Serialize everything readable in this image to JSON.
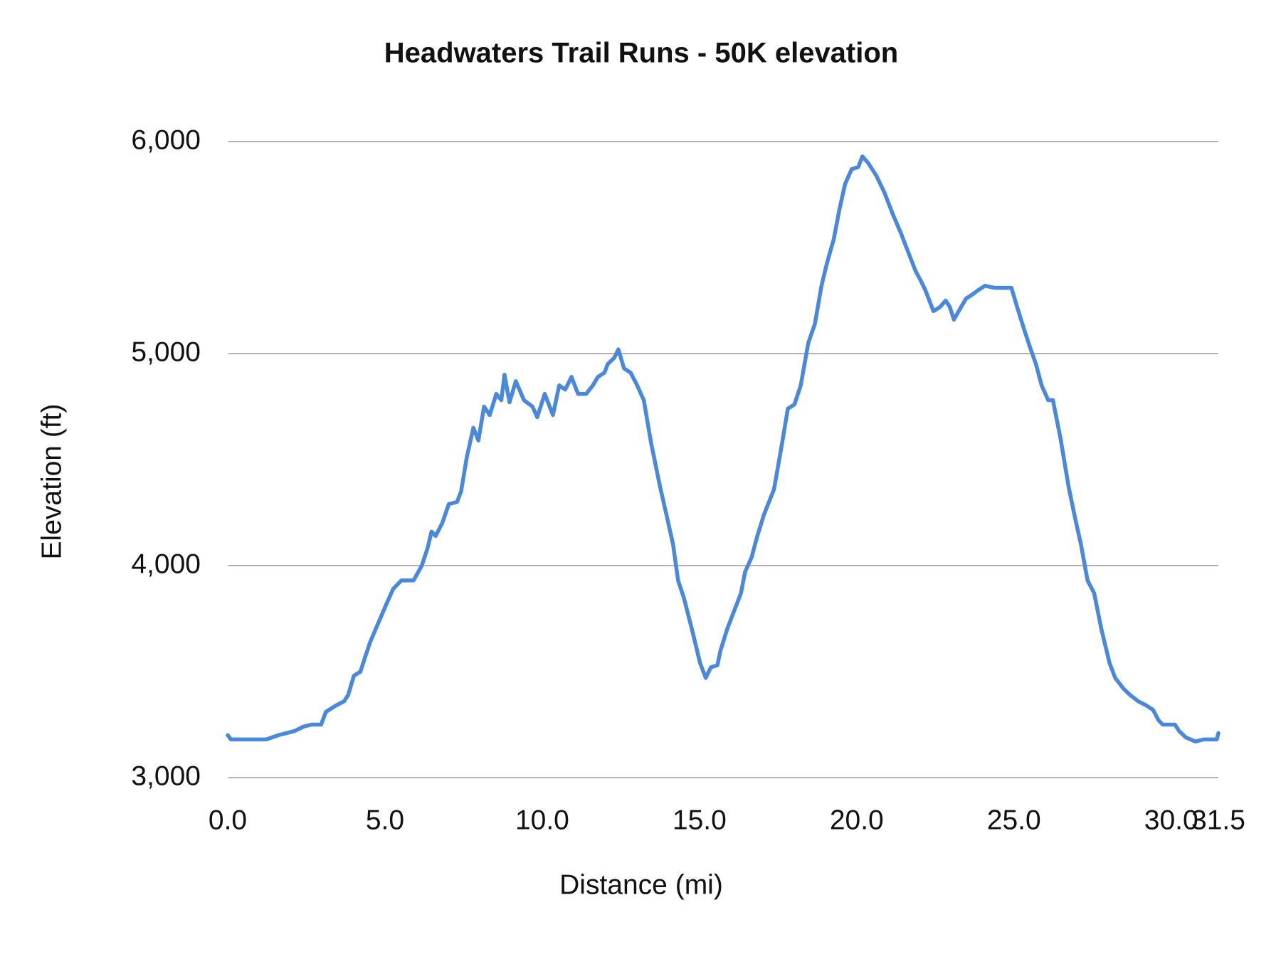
{
  "chart_data": {
    "type": "line",
    "title": "Headwaters Trail Runs - 50K elevation",
    "x_label": "Distance (mi)",
    "y_label": "Elevation (ft)",
    "xlim": [
      0,
      31.5
    ],
    "ylim": [
      3000,
      6000
    ],
    "xticks": [
      {
        "value": 0,
        "label": "0.0"
      },
      {
        "value": 5,
        "label": "5.0"
      },
      {
        "value": 10,
        "label": "10.0"
      },
      {
        "value": 15,
        "label": "15.0"
      },
      {
        "value": 20,
        "label": "20.0"
      },
      {
        "value": 25,
        "label": "25.0"
      },
      {
        "value": 30,
        "label": "30.0"
      },
      {
        "value": 31.5,
        "label": "31.5"
      }
    ],
    "yticks": [
      {
        "value": 3000,
        "label": "3,000"
      },
      {
        "value": 4000,
        "label": "4,000"
      },
      {
        "value": 5000,
        "label": "5,000"
      },
      {
        "value": 6000,
        "label": "6,000"
      }
    ],
    "grid": true,
    "x": [
      0,
      0.1,
      1.22,
      1.61,
      1.87,
      2.13,
      2.4,
      2.66,
      2.97,
      3.12,
      3.44,
      3.7,
      3.83,
      4.01,
      4.22,
      4.35,
      4.53,
      4.79,
      5.05,
      5.26,
      5.52,
      5.73,
      5.91,
      6.17,
      6.35,
      6.48,
      6.61,
      6.82,
      7.03,
      7.29,
      7.42,
      7.6,
      7.81,
      7.97,
      8.15,
      8.33,
      8.54,
      8.7,
      8.8,
      8.96,
      9.16,
      9.42,
      9.69,
      9.84,
      10.08,
      10.34,
      10.54,
      10.73,
      10.93,
      11.14,
      11.4,
      11.61,
      11.77,
      11.98,
      12.08,
      12.29,
      12.42,
      12.6,
      12.81,
      13.02,
      13.23,
      13.46,
      13.75,
      13.98,
      14.16,
      14.32,
      14.5,
      14.76,
      15.02,
      15.2,
      15.36,
      15.57,
      15.67,
      15.88,
      16.06,
      16.32,
      16.45,
      16.66,
      16.84,
      17.05,
      17.37,
      17.5,
      17.63,
      17.81,
      18.02,
      18.22,
      18.46,
      18.67,
      18.88,
      19.06,
      19.27,
      19.45,
      19.63,
      19.84,
      20.05,
      20.18,
      20.36,
      20.62,
      20.88,
      21.14,
      21.4,
      21.66,
      21.87,
      22.05,
      22.18,
      22.44,
      22.65,
      22.83,
      22.96,
      23.09,
      23.28,
      23.48,
      23.69,
      23.87,
      24.08,
      24.39,
      24.92,
      25.1,
      25.31,
      25.51,
      25.7,
      25.88,
      26.09,
      26.24,
      26.48,
      26.74,
      26.95,
      27.13,
      27.34,
      27.55,
      27.78,
      28.04,
      28.22,
      28.48,
      28.69,
      28.95,
      29.21,
      29.42,
      29.6,
      29.73,
      30.12,
      30.25,
      30.46,
      30.77,
      31.03,
      31.45,
      31.5
    ],
    "series": [
      {
        "color": "#4a88dc",
        "values": [
          3200,
          3180,
          3180,
          3200,
          3210,
          3220,
          3240,
          3250,
          3250,
          3310,
          3340,
          3360,
          3390,
          3480,
          3500,
          3560,
          3640,
          3730,
          3820,
          3890,
          3930,
          3930,
          3930,
          4000,
          4080,
          4160,
          4140,
          4200,
          4290,
          4300,
          4350,
          4510,
          4650,
          4590,
          4750,
          4710,
          4810,
          4780,
          4900,
          4770,
          4870,
          4780,
          4750,
          4700,
          4810,
          4710,
          4850,
          4830,
          4890,
          4810,
          4810,
          4850,
          4890,
          4910,
          4950,
          4980,
          5020,
          4930,
          4910,
          4850,
          4780,
          4580,
          4370,
          4220,
          4100,
          3930,
          3850,
          3700,
          3540,
          3470,
          3520,
          3530,
          3600,
          3700,
          3770,
          3870,
          3970,
          4040,
          4140,
          4240,
          4360,
          4470,
          4580,
          4740,
          4760,
          4850,
          5050,
          5140,
          5320,
          5430,
          5540,
          5680,
          5800,
          5870,
          5880,
          5930,
          5900,
          5840,
          5760,
          5660,
          5570,
          5470,
          5390,
          5340,
          5300,
          5200,
          5220,
          5250,
          5220,
          5160,
          5210,
          5260,
          5280,
          5300,
          5320,
          5310,
          5310,
          5220,
          5120,
          5030,
          4950,
          4850,
          4780,
          4780,
          4600,
          4370,
          4220,
          4100,
          3930,
          3870,
          3700,
          3540,
          3470,
          3420,
          3390,
          3360,
          3340,
          3320,
          3270,
          3250,
          3250,
          3220,
          3190,
          3170,
          3180,
          3180,
          3210
        ]
      }
    ]
  }
}
